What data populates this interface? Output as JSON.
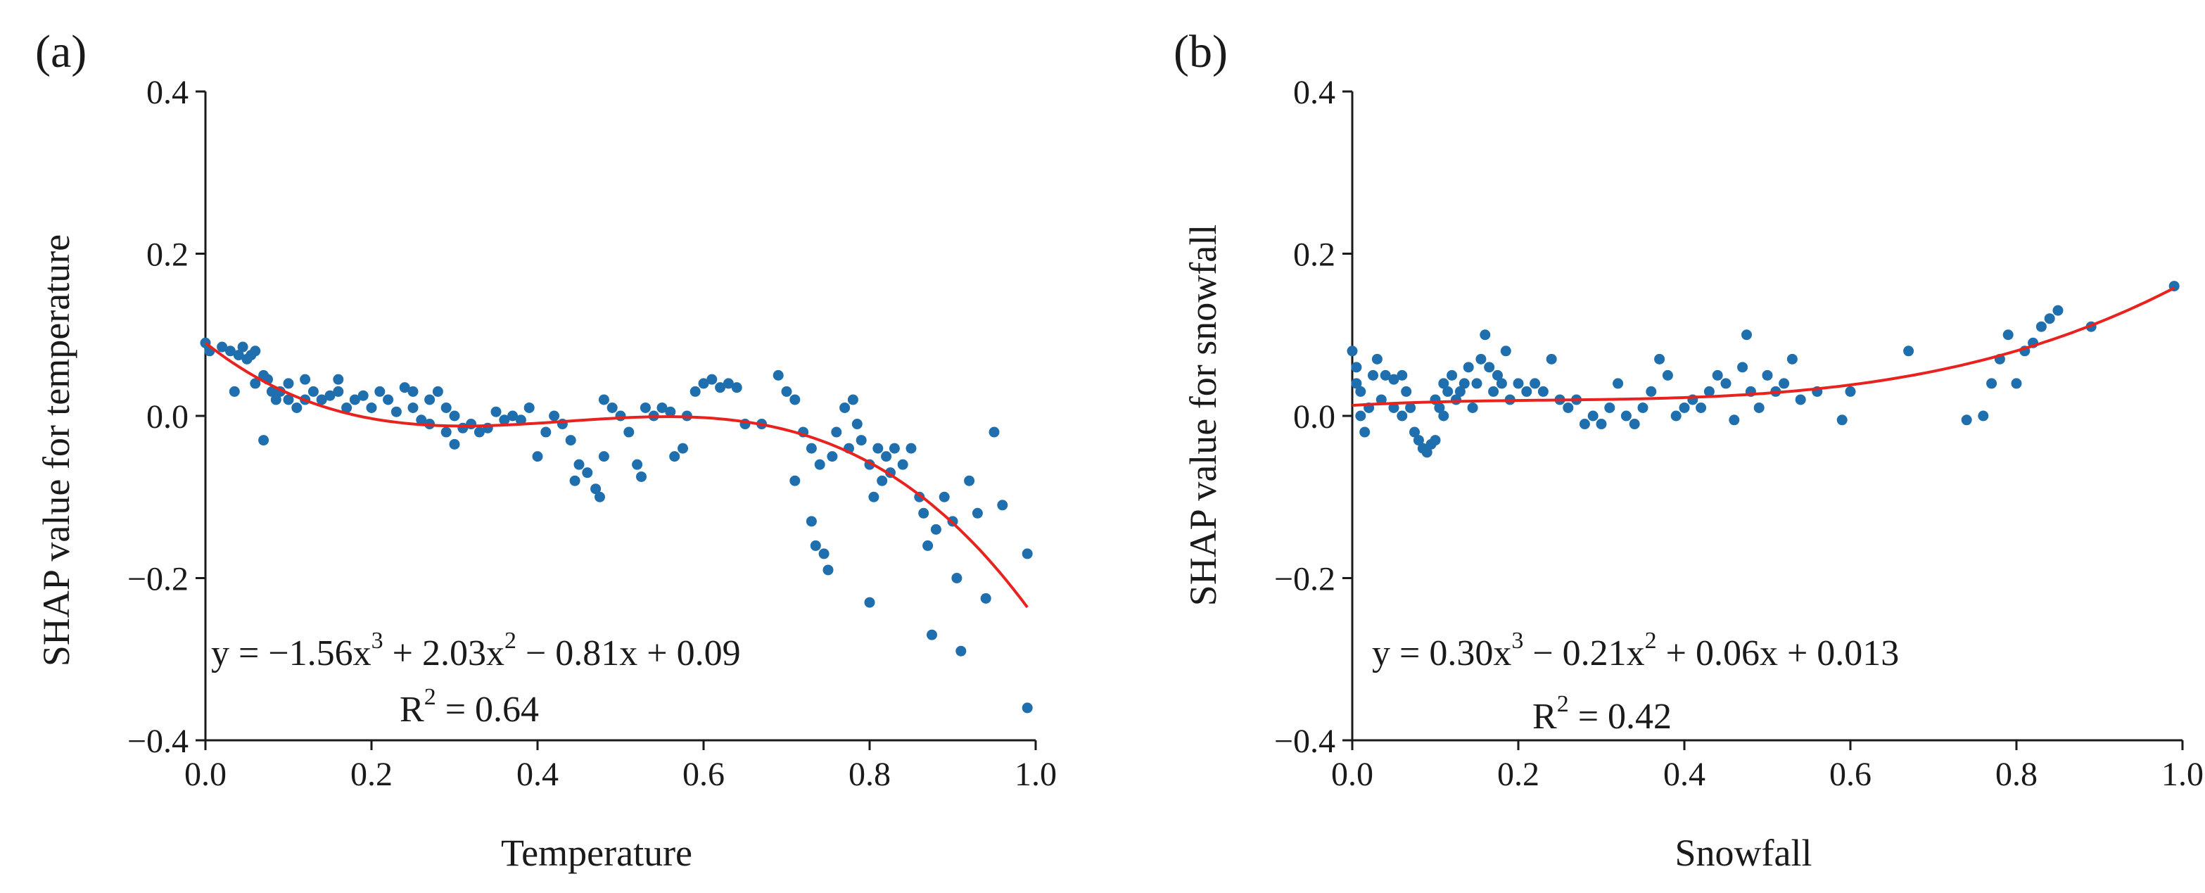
{
  "colors": {
    "points": "#1f6fae",
    "fit": "#e8231f",
    "axis": "#1a1a1a"
  },
  "chart_data": [
    {
      "type": "scatter",
      "panel_label": "(a)",
      "xlabel": "Temperature",
      "ylabel": "SHAP value for temperature",
      "xlim": [
        0,
        1
      ],
      "ylim": [
        -0.4,
        0.4
      ],
      "x_ticks": [
        "0.0",
        "0.2",
        "0.4",
        "0.6",
        "0.8",
        "1.0"
      ],
      "y_ticks": [
        "0.4",
        "0.2",
        "0.0",
        "−0.2",
        "−0.4"
      ],
      "fit": {
        "equation": {
          "part1": "y = −1.56x",
          "exp1": "3",
          "part2": " + 2.03x",
          "exp2": "2",
          "part3": " − 0.81x + 0.09"
        },
        "r2": {
          "prefix": "R",
          "exp": "2",
          "suffix": " = 0.64"
        },
        "coefficients": [
          -1.56,
          2.03,
          -0.81,
          0.09
        ]
      },
      "points": [
        [
          0.0,
          0.09
        ],
        [
          0.005,
          0.08
        ],
        [
          0.02,
          0.085
        ],
        [
          0.03,
          0.08
        ],
        [
          0.04,
          0.075
        ],
        [
          0.045,
          0.085
        ],
        [
          0.05,
          0.07
        ],
        [
          0.055,
          0.075
        ],
        [
          0.06,
          0.08
        ],
        [
          0.035,
          0.03
        ],
        [
          0.06,
          0.04
        ],
        [
          0.07,
          0.05
        ],
        [
          0.075,
          0.045
        ],
        [
          0.08,
          0.03
        ],
        [
          0.085,
          0.02
        ],
        [
          0.07,
          -0.03
        ],
        [
          0.09,
          0.03
        ],
        [
          0.1,
          0.02
        ],
        [
          0.1,
          0.04
        ],
        [
          0.11,
          0.01
        ],
        [
          0.12,
          0.02
        ],
        [
          0.13,
          0.03
        ],
        [
          0.12,
          0.045
        ],
        [
          0.14,
          0.02
        ],
        [
          0.15,
          0.025
        ],
        [
          0.16,
          0.03
        ],
        [
          0.16,
          0.045
        ],
        [
          0.17,
          0.01
        ],
        [
          0.18,
          0.02
        ],
        [
          0.19,
          0.025
        ],
        [
          0.2,
          0.01
        ],
        [
          0.21,
          0.03
        ],
        [
          0.22,
          0.02
        ],
        [
          0.23,
          0.005
        ],
        [
          0.24,
          0.035
        ],
        [
          0.25,
          0.01
        ],
        [
          0.25,
          0.03
        ],
        [
          0.26,
          -0.005
        ],
        [
          0.27,
          0.02
        ],
        [
          0.27,
          -0.01
        ],
        [
          0.28,
          0.03
        ],
        [
          0.29,
          0.01
        ],
        [
          0.29,
          -0.02
        ],
        [
          0.3,
          0.0
        ],
        [
          0.31,
          -0.015
        ],
        [
          0.3,
          -0.035
        ],
        [
          0.32,
          -0.01
        ],
        [
          0.33,
          -0.02
        ],
        [
          0.34,
          -0.015
        ],
        [
          0.35,
          0.005
        ],
        [
          0.36,
          -0.005
        ],
        [
          0.37,
          0.0
        ],
        [
          0.38,
          -0.005
        ],
        [
          0.39,
          0.01
        ],
        [
          0.4,
          -0.05
        ],
        [
          0.41,
          -0.02
        ],
        [
          0.42,
          0.0
        ],
        [
          0.43,
          -0.01
        ],
        [
          0.44,
          -0.03
        ],
        [
          0.445,
          -0.08
        ],
        [
          0.45,
          -0.06
        ],
        [
          0.46,
          -0.07
        ],
        [
          0.47,
          -0.09
        ],
        [
          0.475,
          -0.1
        ],
        [
          0.48,
          -0.05
        ],
        [
          0.48,
          0.02
        ],
        [
          0.49,
          0.01
        ],
        [
          0.5,
          0.0
        ],
        [
          0.51,
          -0.02
        ],
        [
          0.52,
          -0.06
        ],
        [
          0.525,
          -0.075
        ],
        [
          0.53,
          0.01
        ],
        [
          0.54,
          0.0
        ],
        [
          0.55,
          0.01
        ],
        [
          0.56,
          0.005
        ],
        [
          0.565,
          -0.05
        ],
        [
          0.575,
          -0.04
        ],
        [
          0.58,
          0.0
        ],
        [
          0.59,
          0.03
        ],
        [
          0.6,
          0.04
        ],
        [
          0.61,
          0.045
        ],
        [
          0.62,
          0.035
        ],
        [
          0.63,
          0.04
        ],
        [
          0.64,
          0.035
        ],
        [
          0.65,
          -0.01
        ],
        [
          0.67,
          -0.01
        ],
        [
          0.69,
          0.05
        ],
        [
          0.7,
          0.03
        ],
        [
          0.71,
          0.02
        ],
        [
          0.71,
          -0.08
        ],
        [
          0.72,
          -0.02
        ],
        [
          0.73,
          -0.04
        ],
        [
          0.73,
          -0.13
        ],
        [
          0.735,
          -0.16
        ],
        [
          0.74,
          -0.06
        ],
        [
          0.745,
          -0.17
        ],
        [
          0.75,
          -0.19
        ],
        [
          0.755,
          -0.05
        ],
        [
          0.76,
          -0.02
        ],
        [
          0.77,
          0.01
        ],
        [
          0.775,
          -0.04
        ],
        [
          0.78,
          0.02
        ],
        [
          0.785,
          -0.01
        ],
        [
          0.79,
          -0.03
        ],
        [
          0.8,
          -0.06
        ],
        [
          0.8,
          -0.23
        ],
        [
          0.805,
          -0.1
        ],
        [
          0.81,
          -0.04
        ],
        [
          0.815,
          -0.08
        ],
        [
          0.82,
          -0.05
        ],
        [
          0.825,
          -0.07
        ],
        [
          0.83,
          -0.04
        ],
        [
          0.84,
          -0.06
        ],
        [
          0.85,
          -0.04
        ],
        [
          0.86,
          -0.1
        ],
        [
          0.865,
          -0.12
        ],
        [
          0.87,
          -0.16
        ],
        [
          0.875,
          -0.27
        ],
        [
          0.88,
          -0.14
        ],
        [
          0.89,
          -0.1
        ],
        [
          0.9,
          -0.13
        ],
        [
          0.905,
          -0.2
        ],
        [
          0.91,
          -0.29
        ],
        [
          0.92,
          -0.08
        ],
        [
          0.93,
          -0.12
        ],
        [
          0.94,
          -0.225
        ],
        [
          0.95,
          -0.02
        ],
        [
          0.96,
          -0.11
        ],
        [
          0.99,
          -0.17
        ],
        [
          0.99,
          -0.36
        ]
      ]
    },
    {
      "type": "scatter",
      "panel_label": "(b)",
      "xlabel": "Snowfall",
      "ylabel": "SHAP value for snowfall",
      "xlim": [
        0,
        1
      ],
      "ylim": [
        -0.4,
        0.4
      ],
      "x_ticks": [
        "0.0",
        "0.2",
        "0.4",
        "0.6",
        "0.8",
        "1.0"
      ],
      "y_ticks": [
        "0.4",
        "0.2",
        "0.0",
        "−0.2",
        "−0.4"
      ],
      "fit": {
        "equation": {
          "part1": "y = 0.30x",
          "exp1": "3",
          "part2": " − 0.21x",
          "exp2": "2",
          "part3": " + 0.06x + 0.013"
        },
        "r2": {
          "prefix": "R",
          "exp": "2",
          "suffix": " = 0.42"
        },
        "coefficients": [
          0.3,
          -0.21,
          0.06,
          0.013
        ]
      },
      "points": [
        [
          0.0,
          0.08
        ],
        [
          0.005,
          0.06
        ],
        [
          0.005,
          0.04
        ],
        [
          0.01,
          0.03
        ],
        [
          0.01,
          0.0
        ],
        [
          0.015,
          -0.02
        ],
        [
          0.02,
          0.01
        ],
        [
          0.025,
          0.05
        ],
        [
          0.03,
          0.07
        ],
        [
          0.035,
          0.02
        ],
        [
          0.04,
          0.05
        ],
        [
          0.05,
          0.045
        ],
        [
          0.05,
          0.01
        ],
        [
          0.06,
          0.0
        ],
        [
          0.06,
          0.05
        ],
        [
          0.065,
          0.03
        ],
        [
          0.07,
          0.01
        ],
        [
          0.075,
          -0.02
        ],
        [
          0.08,
          -0.03
        ],
        [
          0.085,
          -0.04
        ],
        [
          0.09,
          -0.045
        ],
        [
          0.095,
          -0.035
        ],
        [
          0.1,
          -0.03
        ],
        [
          0.1,
          0.02
        ],
        [
          0.105,
          0.01
        ],
        [
          0.11,
          0.04
        ],
        [
          0.11,
          0.0
        ],
        [
          0.115,
          0.03
        ],
        [
          0.12,
          0.05
        ],
        [
          0.125,
          0.02
        ],
        [
          0.13,
          0.03
        ],
        [
          0.135,
          0.04
        ],
        [
          0.14,
          0.06
        ],
        [
          0.145,
          0.01
        ],
        [
          0.15,
          0.04
        ],
        [
          0.155,
          0.07
        ],
        [
          0.16,
          0.1
        ],
        [
          0.165,
          0.06
        ],
        [
          0.17,
          0.03
        ],
        [
          0.175,
          0.05
        ],
        [
          0.18,
          0.04
        ],
        [
          0.185,
          0.08
        ],
        [
          0.19,
          0.02
        ],
        [
          0.2,
          0.04
        ],
        [
          0.21,
          0.03
        ],
        [
          0.22,
          0.04
        ],
        [
          0.23,
          0.03
        ],
        [
          0.24,
          0.07
        ],
        [
          0.25,
          0.02
        ],
        [
          0.26,
          0.01
        ],
        [
          0.27,
          0.02
        ],
        [
          0.28,
          -0.01
        ],
        [
          0.29,
          0.0
        ],
        [
          0.3,
          -0.01
        ],
        [
          0.31,
          0.01
        ],
        [
          0.32,
          0.04
        ],
        [
          0.33,
          0.0
        ],
        [
          0.34,
          -0.01
        ],
        [
          0.35,
          0.01
        ],
        [
          0.36,
          0.03
        ],
        [
          0.37,
          0.07
        ],
        [
          0.38,
          0.05
        ],
        [
          0.39,
          0.0
        ],
        [
          0.4,
          0.01
        ],
        [
          0.41,
          0.02
        ],
        [
          0.42,
          0.01
        ],
        [
          0.43,
          0.03
        ],
        [
          0.44,
          0.05
        ],
        [
          0.45,
          0.04
        ],
        [
          0.46,
          -0.005
        ],
        [
          0.47,
          0.06
        ],
        [
          0.475,
          0.1
        ],
        [
          0.48,
          0.03
        ],
        [
          0.49,
          0.01
        ],
        [
          0.5,
          0.05
        ],
        [
          0.51,
          0.03
        ],
        [
          0.52,
          0.04
        ],
        [
          0.53,
          0.07
        ],
        [
          0.54,
          0.02
        ],
        [
          0.56,
          0.03
        ],
        [
          0.59,
          -0.005
        ],
        [
          0.6,
          0.03
        ],
        [
          0.67,
          0.08
        ],
        [
          0.74,
          -0.005
        ],
        [
          0.76,
          0.0
        ],
        [
          0.77,
          0.04
        ],
        [
          0.78,
          0.07
        ],
        [
          0.79,
          0.1
        ],
        [
          0.8,
          0.04
        ],
        [
          0.81,
          0.08
        ],
        [
          0.82,
          0.09
        ],
        [
          0.83,
          0.11
        ],
        [
          0.84,
          0.12
        ],
        [
          0.85,
          0.13
        ],
        [
          0.89,
          0.11
        ],
        [
          0.99,
          0.16
        ]
      ]
    }
  ]
}
